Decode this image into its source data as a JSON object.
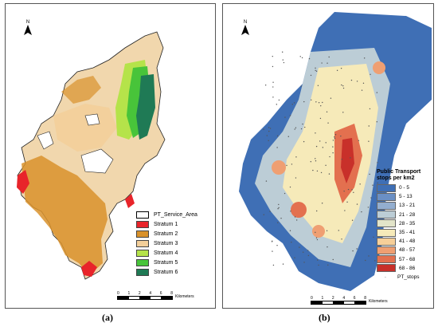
{
  "panel_a": {
    "caption": "(a)",
    "north_label": "N",
    "legend": [
      {
        "label": "PT_Service_Area",
        "color": "#ffffff",
        "outline": true
      },
      {
        "label": "Stratum 1",
        "color": "#e8242a"
      },
      {
        "label": "Stratum 2",
        "color": "#d9922b"
      },
      {
        "label": "Stratum 3",
        "color": "#f3cf9a"
      },
      {
        "label": "Stratum 4",
        "color": "#b5e34a"
      },
      {
        "label": "Stratum 5",
        "color": "#48c43a"
      },
      {
        "label": "Stratum 6",
        "color": "#1f7a55"
      }
    ],
    "scale": {
      "ticks": [
        "0",
        "1",
        "2",
        "4",
        "6",
        "8"
      ],
      "unit": "Kilometers"
    }
  },
  "panel_b": {
    "caption": "(b)",
    "north_label": "N",
    "legend_title": "Public Transport stops per km2",
    "legend": [
      {
        "label": "0 - 5",
        "color": "#3f6fb5"
      },
      {
        "label": "5 - 13",
        "color": "#6a8fc4"
      },
      {
        "label": "13 - 21",
        "color": "#93aecf"
      },
      {
        "label": "21 - 28",
        "color": "#bccdd6"
      },
      {
        "label": "28 - 35",
        "color": "#e2e4c9"
      },
      {
        "label": "35 - 41",
        "color": "#f6eab9"
      },
      {
        "label": "41 - 48",
        "color": "#f6cf99"
      },
      {
        "label": "48 - 57",
        "color": "#ef9f72"
      },
      {
        "label": "57 - 68",
        "color": "#e3704f"
      },
      {
        "label": "68 - 86",
        "color": "#c8302a"
      }
    ],
    "points_label": "PT_stops",
    "scale": {
      "ticks": [
        "0",
        "1",
        "2",
        "4",
        "6",
        "8"
      ],
      "unit": "Kilometers"
    }
  }
}
